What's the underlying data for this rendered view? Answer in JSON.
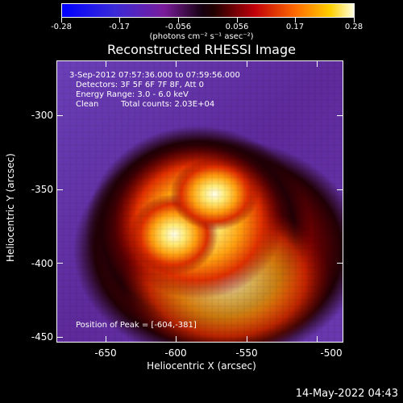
{
  "colorbar": {
    "tick_labels": [
      "-0.28",
      "-0.17",
      "-0.056",
      "0.056",
      "0.17",
      "0.28"
    ],
    "units": "(photons cm⁻² s⁻¹ asec⁻²)"
  },
  "title": "Reconstructed RHESSI Image",
  "annotations": {
    "time": "3-Sep-2012 07:57:36.000 to 07:59:56.000",
    "detectors": "Detectors: 3F 5F 6F 7F 8F, Att 0",
    "energy": "Energy Range: 3.0 - 6.0 keV",
    "clean": "Clean",
    "counts": "Total counts: 2.03E+04",
    "peak": "Position of Peak = [-604,-381]"
  },
  "axes": {
    "ytitle": "Heliocentric Y (arcsec)",
    "xtitle": "Heliocentric X (arcsec)",
    "yticks": [
      "-300",
      "-350",
      "-400",
      "-450"
    ],
    "xticks": [
      "-650",
      "-600",
      "-550",
      "-500"
    ]
  },
  "timestamp": "14-May-2022 04:43"
}
